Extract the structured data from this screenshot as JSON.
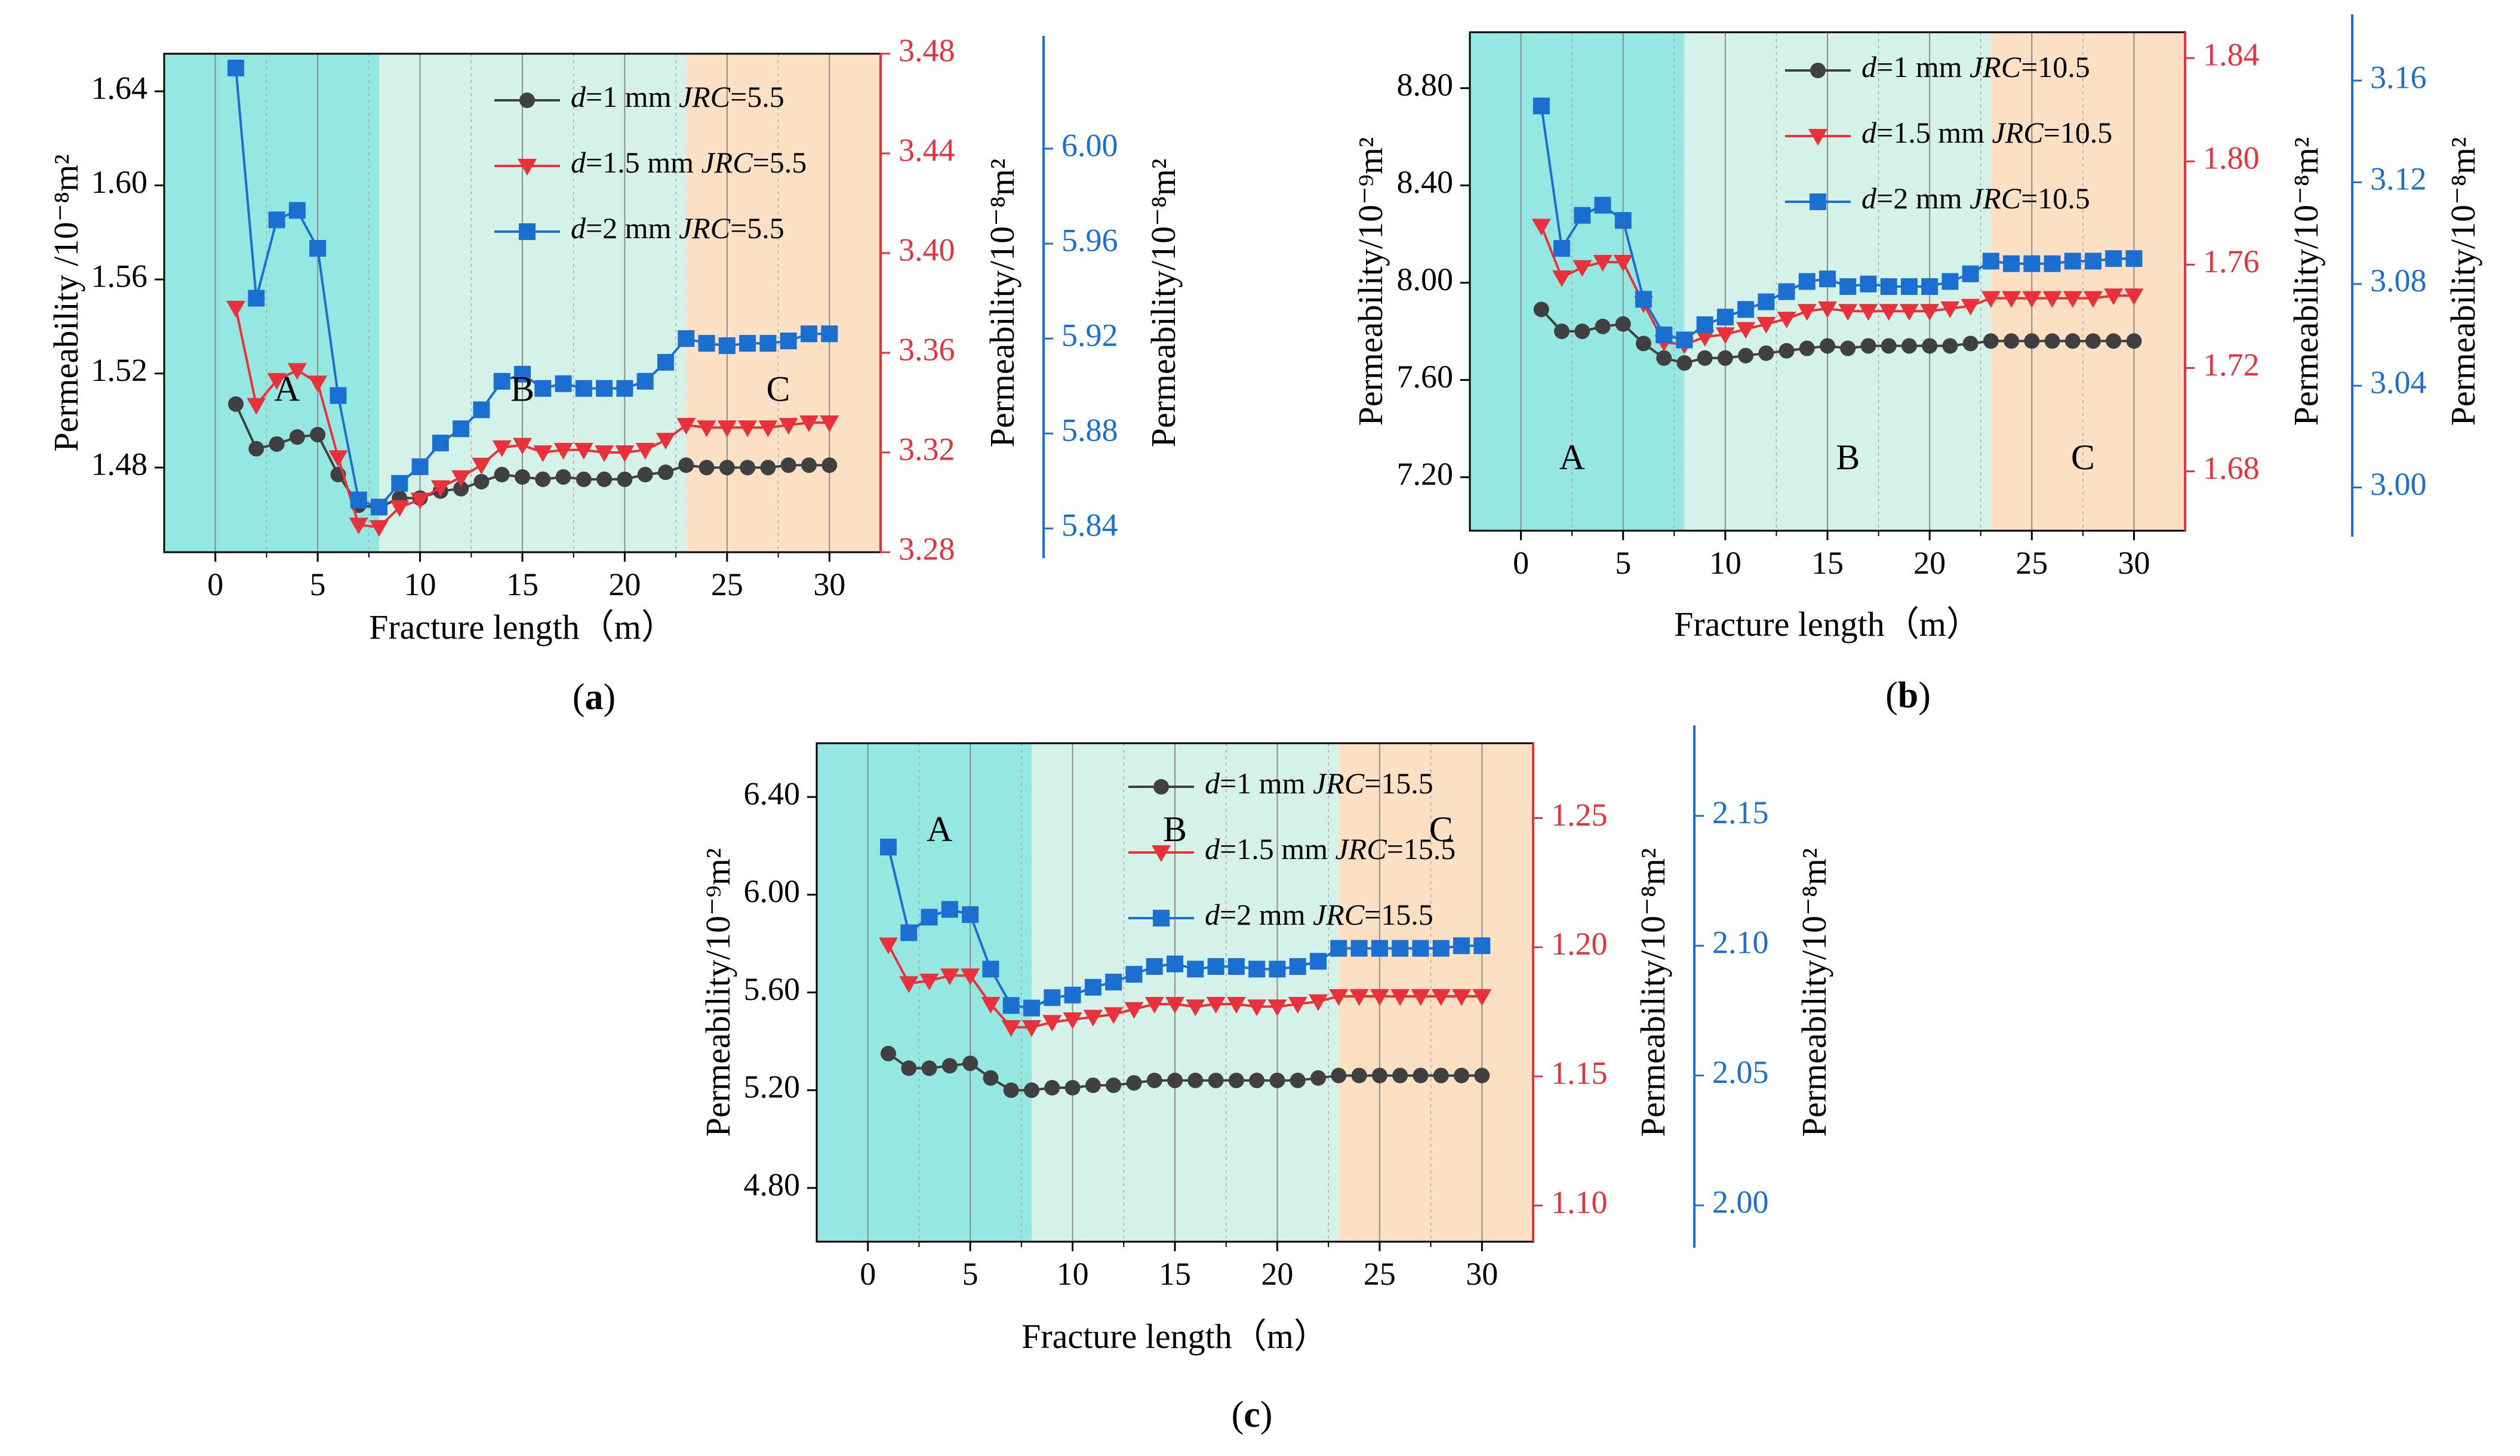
{
  "colors": {
    "series_1mm": "#404040",
    "series_1_5mm": "#e8313a",
    "series_2mm": "#1b6fd1",
    "zone_A": "#94e8e1",
    "zone_B": "#d4f2e8",
    "zone_C": "#fce0c4",
    "grid": "#8c8c8c",
    "axis": "#000000"
  },
  "chart_data": [
    {
      "panel": "(a)",
      "type": "line",
      "xlabel": "Fracture length（m）",
      "xlim": [
        -2.5,
        32.5
      ],
      "xticks": [
        "0",
        "5",
        "10",
        "15",
        "20",
        "25",
        "30"
      ],
      "zones": [
        {
          "label": "A",
          "start": -2.5,
          "end": 8
        },
        {
          "label": "B",
          "start": 8,
          "end": 23
        },
        {
          "label": "C",
          "start": 23,
          "end": 32.5
        }
      ],
      "axes": [
        {
          "label": "Permeability /10⁻⁸m²",
          "color": "#000000",
          "range": [
            1.444,
            1.656
          ],
          "ticks": [
            "1.48",
            "1.52",
            "1.56",
            "1.60",
            "1.64"
          ]
        },
        {
          "label": "",
          "color": "#e8313a",
          "range": [
            3.28,
            3.48
          ],
          "ticks": [
            "3.28",
            "3.32",
            "3.36",
            "3.40",
            "3.44",
            "3.48"
          ]
        },
        {
          "label": "Permeability/10⁻⁸m²",
          "color": "#1b6fd1",
          "range": [
            5.83,
            6.04
          ],
          "ticks": [
            "5.84",
            "5.88",
            "5.92",
            "5.96",
            "6.00"
          ]
        },
        {
          "label": "Permeability/10⁻⁸m²",
          "color": "#000000",
          "hidden": true
        }
      ],
      "x": [
        1,
        2,
        3,
        4,
        5,
        6,
        7,
        8,
        9,
        10,
        11,
        12,
        13,
        14,
        15,
        16,
        17,
        18,
        19,
        20,
        21,
        22,
        23,
        24,
        25,
        26,
        27,
        28,
        29,
        30
      ],
      "series": [
        {
          "name": "d=1 mm JRC=5.5",
          "name_prefix": "d",
          "name_mid": "=1 mm ",
          "name_jrc": "JRC",
          "name_suffix": "=5.5",
          "axis": 0,
          "marker": "circle",
          "values": [
            1.507,
            1.488,
            1.49,
            1.493,
            1.494,
            1.477,
            1.464,
            1.463,
            1.467,
            1.467,
            1.47,
            1.471,
            1.474,
            1.477,
            1.476,
            1.475,
            1.476,
            1.475,
            1.475,
            1.475,
            1.477,
            1.478,
            1.481,
            1.48,
            1.48,
            1.48,
            1.48,
            1.481,
            1.481,
            1.481
          ]
        },
        {
          "name": "d=1.5 mm JRC=5.5",
          "name_prefix": "d",
          "name_mid": "=1.5 mm ",
          "name_jrc": "JRC",
          "name_suffix": "=5.5",
          "axis": 1,
          "marker": "triangle-down",
          "values": [
            3.378,
            3.339,
            3.349,
            3.353,
            3.348,
            3.318,
            3.291,
            3.29,
            3.298,
            3.301,
            3.306,
            3.31,
            3.315,
            3.322,
            3.323,
            3.32,
            3.321,
            3.321,
            3.32,
            3.32,
            3.321,
            3.325,
            3.331,
            3.33,
            3.33,
            3.33,
            3.33,
            3.331,
            3.332,
            3.332
          ]
        },
        {
          "name": "d=2 mm JRC=5.5",
          "name_prefix": "d",
          "name_mid": "=2 mm ",
          "name_jrc": "JRC",
          "name_suffix": "=5.5",
          "axis": 2,
          "marker": "square",
          "values": [
            6.034,
            5.937,
            5.97,
            5.974,
            5.958,
            5.896,
            5.852,
            5.849,
            5.859,
            5.866,
            5.876,
            5.882,
            5.89,
            5.902,
            5.905,
            5.899,
            5.901,
            5.899,
            5.899,
            5.899,
            5.902,
            5.91,
            5.92,
            5.918,
            5.917,
            5.918,
            5.918,
            5.919,
            5.922,
            5.922
          ]
        }
      ],
      "annotations": [
        {
          "text": "A",
          "x": 3.5,
          "frac": 0.68
        },
        {
          "text": "B",
          "x": 15,
          "frac": 0.68
        },
        {
          "text": "C",
          "x": 27.5,
          "frac": 0.68
        }
      ]
    },
    {
      "panel": "(b)",
      "type": "line",
      "xlabel": "Fracture length（m）",
      "xlim": [
        -2.5,
        32.5
      ],
      "xticks": [
        "0",
        "5",
        "10",
        "15",
        "20",
        "25",
        "30"
      ],
      "zones": [
        {
          "label": "A",
          "start": -2.5,
          "end": 8
        },
        {
          "label": "B",
          "start": 8,
          "end": 23
        },
        {
          "label": "C",
          "start": 23,
          "end": 32.5
        }
      ],
      "axes": [
        {
          "label": "Permeability/10⁻⁹m²",
          "color": "#000000",
          "range": [
            6.98,
            9.03
          ],
          "ticks": [
            "7.20",
            "7.60",
            "8.00",
            "8.40",
            "8.80"
          ]
        },
        {
          "label": "",
          "color": "#e8313a",
          "range": [
            1.657,
            1.85
          ],
          "ticks": [
            "1.68",
            "1.72",
            "1.76",
            "1.80",
            "1.84"
          ]
        },
        {
          "label": "Permeability/10⁻⁸m²",
          "color": "#1b6fd1",
          "range": [
            2.983,
            3.179
          ],
          "ticks": [
            "3.00",
            "3.04",
            "3.08",
            "3.12",
            "3.16"
          ]
        },
        {
          "label": "Permeability/10⁻⁸m²",
          "color": "#000000",
          "hidden": true
        }
      ],
      "x": [
        1,
        2,
        3,
        4,
        5,
        6,
        7,
        8,
        9,
        10,
        11,
        12,
        13,
        14,
        15,
        16,
        17,
        18,
        19,
        20,
        21,
        22,
        23,
        24,
        25,
        26,
        27,
        28,
        29,
        30
      ],
      "series": [
        {
          "name": "d=1 mm JRC=10.5",
          "name_prefix": "d",
          "name_mid": "=1 mm ",
          "name_jrc": "JRC",
          "name_suffix": "=10.5",
          "axis": 0,
          "marker": "circle",
          "values": [
            7.89,
            7.8,
            7.8,
            7.82,
            7.83,
            7.75,
            7.69,
            7.67,
            7.69,
            7.69,
            7.7,
            7.71,
            7.72,
            7.73,
            7.74,
            7.73,
            7.74,
            7.74,
            7.74,
            7.74,
            7.74,
            7.75,
            7.76,
            7.76,
            7.76,
            7.76,
            7.76,
            7.76,
            7.76,
            7.76
          ]
        },
        {
          "name": "d=1.5 mm JRC=10.5",
          "name_prefix": "d",
          "name_mid": "=1.5 mm ",
          "name_jrc": "JRC",
          "name_suffix": "=10.5",
          "axis": 1,
          "marker": "triangle-down",
          "values": [
            1.775,
            1.755,
            1.759,
            1.761,
            1.761,
            1.745,
            1.73,
            1.729,
            1.732,
            1.733,
            1.735,
            1.737,
            1.739,
            1.742,
            1.743,
            1.742,
            1.742,
            1.742,
            1.742,
            1.742,
            1.743,
            1.744,
            1.747,
            1.747,
            1.747,
            1.747,
            1.747,
            1.747,
            1.748,
            1.748
          ]
        },
        {
          "name": "d=2 mm JRC=10.5",
          "name_prefix": "d",
          "name_mid": "=2 mm ",
          "name_jrc": "JRC",
          "name_suffix": "=10.5",
          "axis": 2,
          "marker": "square",
          "values": [
            3.15,
            3.094,
            3.107,
            3.111,
            3.105,
            3.074,
            3.06,
            3.058,
            3.064,
            3.067,
            3.07,
            3.073,
            3.077,
            3.081,
            3.082,
            3.079,
            3.08,
            3.079,
            3.079,
            3.079,
            3.081,
            3.084,
            3.089,
            3.088,
            3.088,
            3.088,
            3.089,
            3.089,
            3.09,
            3.09
          ]
        }
      ],
      "annotations": [
        {
          "text": "A",
          "x": 2.5,
          "frac": 0.86
        },
        {
          "text": "B",
          "x": 16,
          "frac": 0.86
        },
        {
          "text": "C",
          "x": 27.5,
          "frac": 0.86
        }
      ]
    },
    {
      "panel": "(c)",
      "type": "line",
      "xlabel": "Fracture length（m）",
      "xlim": [
        -2.5,
        32.5
      ],
      "xticks": [
        "0",
        "5",
        "10",
        "15",
        "20",
        "25",
        "30"
      ],
      "zones": [
        {
          "label": "A",
          "start": -2.5,
          "end": 8
        },
        {
          "label": "B",
          "start": 8,
          "end": 23
        },
        {
          "label": "C",
          "start": 23,
          "end": 32.5
        }
      ],
      "axes": [
        {
          "label": "Permeability/10⁻⁹m²",
          "color": "#000000",
          "range": [
            4.58,
            6.62
          ],
          "ticks": [
            "4.80",
            "5.20",
            "5.60",
            "6.00",
            "6.40"
          ]
        },
        {
          "label": "",
          "color": "#e8313a",
          "range": [
            1.086,
            1.279
          ],
          "ticks": [
            "1.10",
            "1.15",
            "1.20",
            "1.25"
          ]
        },
        {
          "label": "Permeability/10⁻⁸m²",
          "color": "#1b6fd1",
          "range": [
            1.986,
            2.178
          ],
          "ticks": [
            "2.00",
            "2.05",
            "2.10",
            "2.15"
          ]
        },
        {
          "label": "Permeability/10⁻⁸m²",
          "color": "#000000",
          "hidden": true
        }
      ],
      "x": [
        1,
        2,
        3,
        4,
        5,
        6,
        7,
        8,
        9,
        10,
        11,
        12,
        13,
        14,
        15,
        16,
        17,
        18,
        19,
        20,
        21,
        22,
        23,
        24,
        25,
        26,
        27,
        28,
        29,
        30
      ],
      "series": [
        {
          "name": "d=1 mm JRC=15.5",
          "name_prefix": "d",
          "name_mid": "=1 mm ",
          "name_jrc": "JRC",
          "name_suffix": "=15.5",
          "axis": 0,
          "marker": "circle",
          "values": [
            5.35,
            5.29,
            5.29,
            5.3,
            5.31,
            5.25,
            5.2,
            5.2,
            5.21,
            5.21,
            5.22,
            5.22,
            5.23,
            5.24,
            5.24,
            5.24,
            5.24,
            5.24,
            5.24,
            5.24,
            5.24,
            5.25,
            5.26,
            5.26,
            5.26,
            5.26,
            5.26,
            5.26,
            5.26,
            5.26
          ]
        },
        {
          "name": "d=1.5 mm JRC=15.5",
          "name_prefix": "d",
          "name_mid": "=1.5 mm ",
          "name_jrc": "JRC",
          "name_suffix": "=15.5",
          "axis": 1,
          "marker": "triangle-down",
          "values": [
            1.201,
            1.186,
            1.187,
            1.189,
            1.189,
            1.178,
            1.169,
            1.169,
            1.171,
            1.172,
            1.173,
            1.174,
            1.176,
            1.178,
            1.178,
            1.177,
            1.178,
            1.178,
            1.177,
            1.177,
            1.178,
            1.179,
            1.181,
            1.181,
            1.181,
            1.181,
            1.181,
            1.181,
            1.181,
            1.181
          ]
        },
        {
          "name": "d=2 mm JRC=15.5",
          "name_prefix": "d",
          "name_mid": "=2 mm ",
          "name_jrc": "JRC",
          "name_suffix": "=15.5",
          "axis": 2,
          "marker": "square",
          "values": [
            2.138,
            2.105,
            2.111,
            2.114,
            2.112,
            2.091,
            2.077,
            2.076,
            2.08,
            2.081,
            2.084,
            2.086,
            2.089,
            2.092,
            2.093,
            2.091,
            2.092,
            2.092,
            2.091,
            2.091,
            2.092,
            2.094,
            2.099,
            2.099,
            2.099,
            2.099,
            2.099,
            2.099,
            2.1,
            2.1
          ]
        }
      ],
      "annotations": [
        {
          "text": "A",
          "x": 3.5,
          "frac": 0.18
        },
        {
          "text": "B",
          "x": 15,
          "frac": 0.18
        },
        {
          "text": "C",
          "x": 28,
          "frac": 0.18
        }
      ]
    }
  ]
}
